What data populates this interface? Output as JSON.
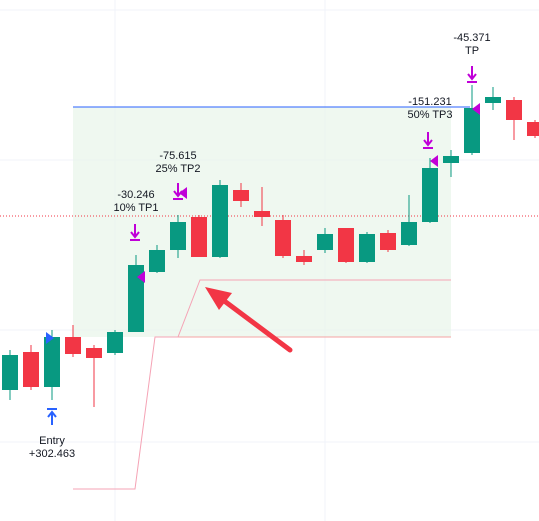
{
  "chart_data": {
    "type": "candlestick",
    "open": [
      131,
      169,
      134,
      184,
      173,
      168,
      189,
      249,
      271,
      304,
      264,
      331,
      310,
      301,
      265,
      271,
      293,
      259,
      288,
      276,
      299,
      358,
      368,
      418,
      421,
      399
    ],
    "high": [
      171,
      176,
      191,
      196,
      176,
      191,
      266,
      276,
      306,
      306,
      341,
      338,
      334,
      306,
      271,
      293,
      293,
      289,
      291,
      326,
      363,
      371,
      436,
      434,
      424,
      401
    ],
    "low": [
      121,
      131,
      121,
      164,
      114,
      166,
      189,
      248,
      263,
      264,
      263,
      314,
      295,
      263,
      256,
      268,
      258,
      258,
      269,
      275,
      298,
      344,
      366,
      411,
      381,
      383
    ],
    "close": [
      166,
      134,
      184,
      167,
      163,
      189,
      256,
      271,
      299,
      264,
      336,
      320,
      304,
      265,
      259,
      287,
      259,
      287,
      271,
      299,
      353,
      365,
      413,
      424,
      401,
      385
    ],
    "up_color": "#089981",
    "down_color": "#f23645",
    "ylim": [
      0,
      521
    ],
    "annotations": {
      "tp1": [
        "-30.246",
        "10% TP1"
      ],
      "tp2": [
        "-75.615",
        "25% TP2"
      ],
      "tp3": [
        "-151.231",
        "50% TP3"
      ],
      "tp": [
        "-45.371",
        "TP"
      ],
      "entry": [
        "Entry",
        "+302.463"
      ]
    }
  }
}
